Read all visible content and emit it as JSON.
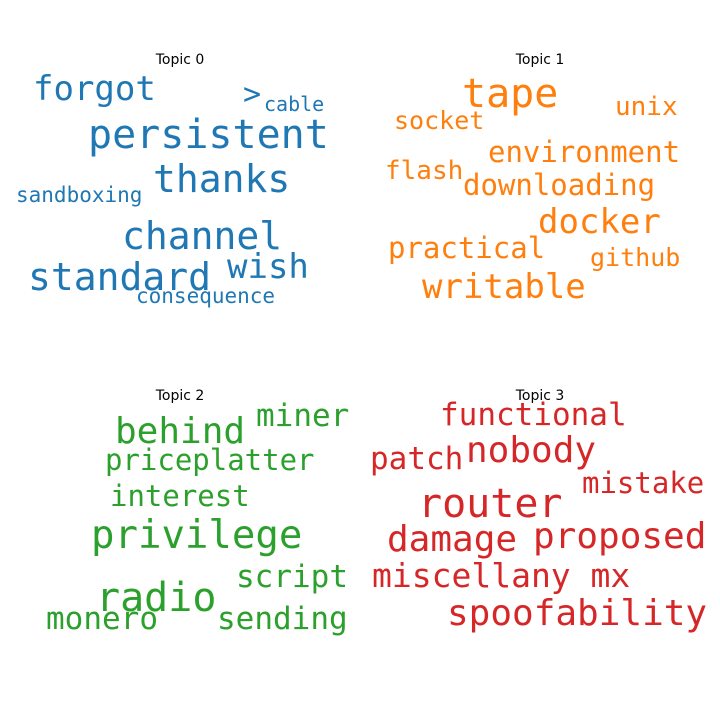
{
  "colors": {
    "topic0": "#1f77b4",
    "topic1": "#ff7f0e",
    "topic2": "#2ca02c",
    "topic3": "#d62728"
  },
  "topics": [
    {
      "title": "Topic 0",
      "words": [
        "forgot",
        ">",
        "cable",
        "persistent",
        "thanks",
        "sandboxing",
        "channel",
        "standard",
        "wish",
        "consequence"
      ]
    },
    {
      "title": "Topic 1",
      "words": [
        "tape",
        "unix",
        "socket",
        "environment",
        "flash",
        "downloading",
        "docker",
        "practical",
        "github",
        "writable"
      ]
    },
    {
      "title": "Topic 2",
      "words": [
        "miner",
        "behind",
        "priceplatter",
        "interest",
        "privilege",
        "script",
        "radio",
        "monero",
        "sending"
      ]
    },
    {
      "title": "Topic 3",
      "words": [
        "functional",
        "patch",
        "nobody",
        "mistake",
        "router",
        "damage",
        "proposed",
        "miscellany mx",
        "spoofability"
      ]
    }
  ]
}
